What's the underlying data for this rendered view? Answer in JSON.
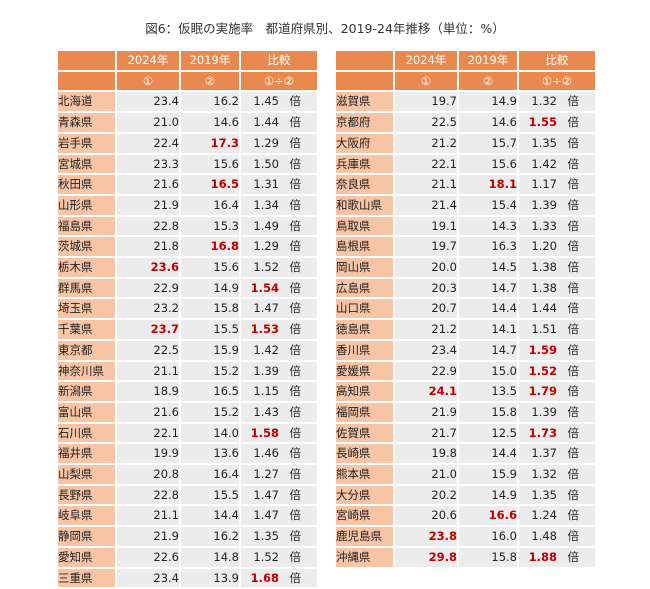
{
  "title": "図6：仮眠の実施率　都道府県別、2019-24年推移（単位：%）",
  "header": {
    "col_2024": "2024年",
    "col_2019": "2019年",
    "col_compare": "比較",
    "mark_2024": "①",
    "mark_2019": "②",
    "mark_compare": "①÷②"
  },
  "unit": "倍",
  "highlight_color": "#c00000",
  "left_table": [
    {
      "pref": "北海道",
      "y2024": "23.4",
      "y2019": "16.2",
      "ratio": "1.45",
      "hl2024": false,
      "hl2019": false,
      "hlratio": false
    },
    {
      "pref": "青森県",
      "y2024": "21.0",
      "y2019": "14.6",
      "ratio": "1.44",
      "hl2024": false,
      "hl2019": false,
      "hlratio": false
    },
    {
      "pref": "岩手県",
      "y2024": "22.4",
      "y2019": "17.3",
      "ratio": "1.29",
      "hl2024": false,
      "hl2019": true,
      "hlratio": false
    },
    {
      "pref": "宮城県",
      "y2024": "23.3",
      "y2019": "15.6",
      "ratio": "1.50",
      "hl2024": false,
      "hl2019": false,
      "hlratio": false
    },
    {
      "pref": "秋田県",
      "y2024": "21.6",
      "y2019": "16.5",
      "ratio": "1.31",
      "hl2024": false,
      "hl2019": true,
      "hlratio": false
    },
    {
      "pref": "山形県",
      "y2024": "21.9",
      "y2019": "16.4",
      "ratio": "1.34",
      "hl2024": false,
      "hl2019": false,
      "hlratio": false
    },
    {
      "pref": "福島県",
      "y2024": "22.8",
      "y2019": "15.3",
      "ratio": "1.49",
      "hl2024": false,
      "hl2019": false,
      "hlratio": false
    },
    {
      "pref": "茨城県",
      "y2024": "21.8",
      "y2019": "16.8",
      "ratio": "1.29",
      "hl2024": false,
      "hl2019": true,
      "hlratio": false
    },
    {
      "pref": "栃木県",
      "y2024": "23.6",
      "y2019": "15.6",
      "ratio": "1.52",
      "hl2024": true,
      "hl2019": false,
      "hlratio": false
    },
    {
      "pref": "群馬県",
      "y2024": "22.9",
      "y2019": "14.9",
      "ratio": "1.54",
      "hl2024": false,
      "hl2019": false,
      "hlratio": true
    },
    {
      "pref": "埼玉県",
      "y2024": "23.2",
      "y2019": "15.8",
      "ratio": "1.47",
      "hl2024": false,
      "hl2019": false,
      "hlratio": false
    },
    {
      "pref": "千葉県",
      "y2024": "23.7",
      "y2019": "15.5",
      "ratio": "1.53",
      "hl2024": true,
      "hl2019": false,
      "hlratio": true
    },
    {
      "pref": "東京都",
      "y2024": "22.5",
      "y2019": "15.9",
      "ratio": "1.42",
      "hl2024": false,
      "hl2019": false,
      "hlratio": false
    },
    {
      "pref": "神奈川県",
      "y2024": "21.1",
      "y2019": "15.2",
      "ratio": "1.39",
      "hl2024": false,
      "hl2019": false,
      "hlratio": false
    },
    {
      "pref": "新潟県",
      "y2024": "18.9",
      "y2019": "16.5",
      "ratio": "1.15",
      "hl2024": false,
      "hl2019": false,
      "hlratio": false
    },
    {
      "pref": "富山県",
      "y2024": "21.6",
      "y2019": "15.2",
      "ratio": "1.43",
      "hl2024": false,
      "hl2019": false,
      "hlratio": false
    },
    {
      "pref": "石川県",
      "y2024": "22.1",
      "y2019": "14.0",
      "ratio": "1.58",
      "hl2024": false,
      "hl2019": false,
      "hlratio": true
    },
    {
      "pref": "福井県",
      "y2024": "19.9",
      "y2019": "13.6",
      "ratio": "1.46",
      "hl2024": false,
      "hl2019": false,
      "hlratio": false
    },
    {
      "pref": "山梨県",
      "y2024": "20.8",
      "y2019": "16.4",
      "ratio": "1.27",
      "hl2024": false,
      "hl2019": false,
      "hlratio": false
    },
    {
      "pref": "長野県",
      "y2024": "22.8",
      "y2019": "15.5",
      "ratio": "1.47",
      "hl2024": false,
      "hl2019": false,
      "hlratio": false
    },
    {
      "pref": "岐阜県",
      "y2024": "21.1",
      "y2019": "14.4",
      "ratio": "1.47",
      "hl2024": false,
      "hl2019": false,
      "hlratio": false
    },
    {
      "pref": "静岡県",
      "y2024": "21.9",
      "y2019": "16.2",
      "ratio": "1.35",
      "hl2024": false,
      "hl2019": false,
      "hlratio": false
    },
    {
      "pref": "愛知県",
      "y2024": "22.6",
      "y2019": "14.8",
      "ratio": "1.52",
      "hl2024": false,
      "hl2019": false,
      "hlratio": false
    },
    {
      "pref": "三重県",
      "y2024": "23.4",
      "y2019": "13.9",
      "ratio": "1.68",
      "hl2024": false,
      "hl2019": false,
      "hlratio": true
    }
  ],
  "right_table": [
    {
      "pref": "滋賀県",
      "y2024": "19.7",
      "y2019": "14.9",
      "ratio": "1.32",
      "hl2024": false,
      "hl2019": false,
      "hlratio": false
    },
    {
      "pref": "京都府",
      "y2024": "22.5",
      "y2019": "14.6",
      "ratio": "1.55",
      "hl2024": false,
      "hl2019": false,
      "hlratio": true
    },
    {
      "pref": "大阪府",
      "y2024": "21.2",
      "y2019": "15.7",
      "ratio": "1.35",
      "hl2024": false,
      "hl2019": false,
      "hlratio": false
    },
    {
      "pref": "兵庫県",
      "y2024": "22.1",
      "y2019": "15.6",
      "ratio": "1.42",
      "hl2024": false,
      "hl2019": false,
      "hlratio": false
    },
    {
      "pref": "奈良県",
      "y2024": "21.1",
      "y2019": "18.1",
      "ratio": "1.17",
      "hl2024": false,
      "hl2019": true,
      "hlratio": false
    },
    {
      "pref": "和歌山県",
      "y2024": "21.4",
      "y2019": "15.4",
      "ratio": "1.39",
      "hl2024": false,
      "hl2019": false,
      "hlratio": false
    },
    {
      "pref": "鳥取県",
      "y2024": "19.1",
      "y2019": "14.3",
      "ratio": "1.33",
      "hl2024": false,
      "hl2019": false,
      "hlratio": false
    },
    {
      "pref": "島根県",
      "y2024": "19.7",
      "y2019": "16.3",
      "ratio": "1.20",
      "hl2024": false,
      "hl2019": false,
      "hlratio": false
    },
    {
      "pref": "岡山県",
      "y2024": "20.0",
      "y2019": "14.5",
      "ratio": "1.38",
      "hl2024": false,
      "hl2019": false,
      "hlratio": false
    },
    {
      "pref": "広島県",
      "y2024": "20.3",
      "y2019": "14.7",
      "ratio": "1.38",
      "hl2024": false,
      "hl2019": false,
      "hlratio": false
    },
    {
      "pref": "山口県",
      "y2024": "20.7",
      "y2019": "14.4",
      "ratio": "1.44",
      "hl2024": false,
      "hl2019": false,
      "hlratio": false
    },
    {
      "pref": "徳島県",
      "y2024": "21.2",
      "y2019": "14.1",
      "ratio": "1.51",
      "hl2024": false,
      "hl2019": false,
      "hlratio": false
    },
    {
      "pref": "香川県",
      "y2024": "23.4",
      "y2019": "14.7",
      "ratio": "1.59",
      "hl2024": false,
      "hl2019": false,
      "hlratio": true
    },
    {
      "pref": "愛媛県",
      "y2024": "22.9",
      "y2019": "15.0",
      "ratio": "1.52",
      "hl2024": false,
      "hl2019": false,
      "hlratio": true
    },
    {
      "pref": "高知県",
      "y2024": "24.1",
      "y2019": "13.5",
      "ratio": "1.79",
      "hl2024": true,
      "hl2019": false,
      "hlratio": true
    },
    {
      "pref": "福岡県",
      "y2024": "21.9",
      "y2019": "15.8",
      "ratio": "1.39",
      "hl2024": false,
      "hl2019": false,
      "hlratio": false
    },
    {
      "pref": "佐賀県",
      "y2024": "21.7",
      "y2019": "12.5",
      "ratio": "1.73",
      "hl2024": false,
      "hl2019": false,
      "hlratio": true
    },
    {
      "pref": "長崎県",
      "y2024": "19.8",
      "y2019": "14.4",
      "ratio": "1.37",
      "hl2024": false,
      "hl2019": false,
      "hlratio": false
    },
    {
      "pref": "熊本県",
      "y2024": "21.0",
      "y2019": "15.9",
      "ratio": "1.32",
      "hl2024": false,
      "hl2019": false,
      "hlratio": false
    },
    {
      "pref": "大分県",
      "y2024": "20.2",
      "y2019": "14.9",
      "ratio": "1.35",
      "hl2024": false,
      "hl2019": false,
      "hlratio": false
    },
    {
      "pref": "宮崎県",
      "y2024": "20.6",
      "y2019": "16.6",
      "ratio": "1.24",
      "hl2024": false,
      "hl2019": true,
      "hlratio": false
    },
    {
      "pref": "鹿児島県",
      "y2024": "23.8",
      "y2019": "16.0",
      "ratio": "1.48",
      "hl2024": true,
      "hl2019": false,
      "hlratio": false
    },
    {
      "pref": "沖縄県",
      "y2024": "29.8",
      "y2019": "15.8",
      "ratio": "1.88",
      "hl2024": true,
      "hl2019": false,
      "hlratio": true
    }
  ]
}
